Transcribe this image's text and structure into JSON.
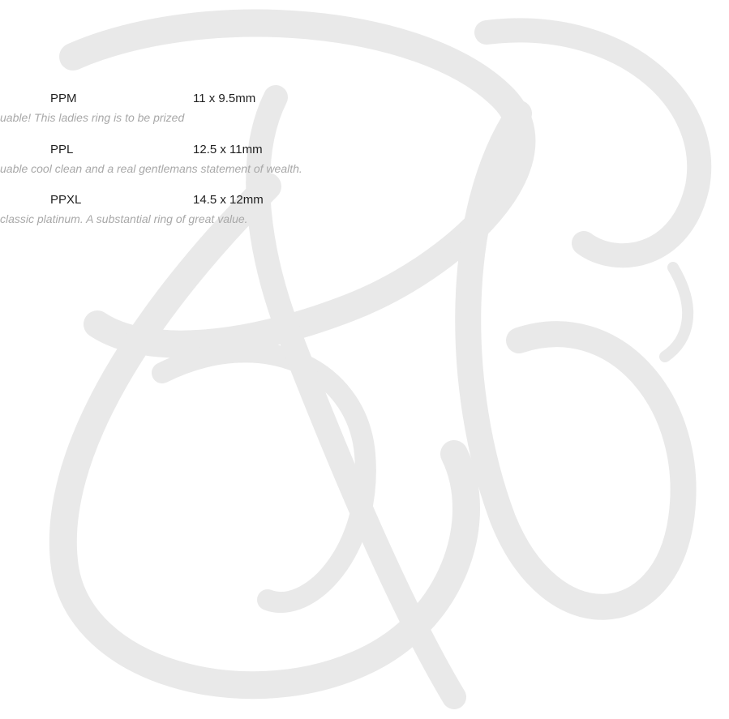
{
  "rows": [
    {
      "code": "PPM",
      "size": "11 x 9.5mm",
      "description": "uable! This ladies ring is to be prized"
    },
    {
      "code": "PPL",
      "size": "12.5 x 11mm",
      "description": "uable cool clean and a real gentlemans statement of wealth."
    },
    {
      "code": "PPXL",
      "size": "14.5 x 12mm",
      "description": "classic platinum. A substantial ring of great value."
    }
  ]
}
